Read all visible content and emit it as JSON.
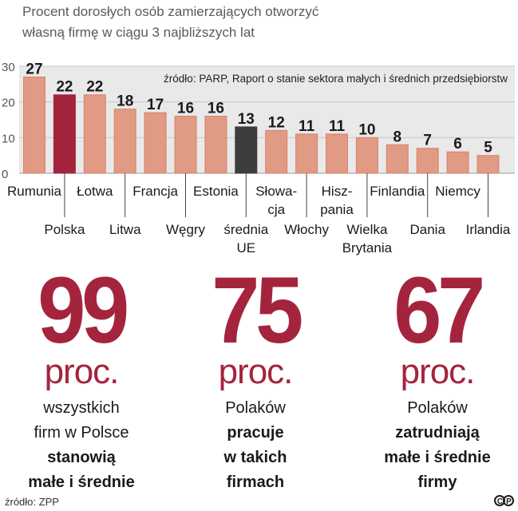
{
  "chart_data": {
    "type": "bar",
    "title": "Procent dorosłych osób zamierzających otworzyć własną firmę w ciągu 3 najbliższych lat",
    "title_lines": [
      "Procent dorosłych osób zamierzających otworzyć",
      "własną firmę w ciągu 3 najbliższych lat"
    ],
    "source_note": "źródło: PARP, Raport o stanie sektora małych i średnich przedsiębiorstw",
    "categories": [
      "Rumunia",
      "Polska",
      "Łotwa",
      "Litwa",
      "Francja",
      "Węgry",
      "Estonia",
      "średnia UE",
      "Słowacja",
      "Włochy",
      "Hiszpania",
      "Wielka Brytania",
      "Finlandia",
      "Dania",
      "Niemcy",
      "Irlandia"
    ],
    "category_label_lines": [
      [
        "Rumunia"
      ],
      [
        "Polska"
      ],
      [
        "Łotwa"
      ],
      [
        "Litwa"
      ],
      [
        "Francja"
      ],
      [
        "Węgry"
      ],
      [
        "Estonia"
      ],
      [
        "średnia",
        "UE"
      ],
      [
        "Słowa-",
        "cja"
      ],
      [
        "Włochy"
      ],
      [
        "Hisz-",
        "pania"
      ],
      [
        "Wielka",
        "Brytania"
      ],
      [
        "Finlandia"
      ],
      [
        "Dania"
      ],
      [
        "Niemcy"
      ],
      [
        "Irlandia"
      ]
    ],
    "values": [
      27,
      22,
      22,
      18,
      17,
      16,
      16,
      13,
      12,
      11,
      11,
      10,
      8,
      7,
      6,
      5
    ],
    "highlight": {
      "Polska": "#a5243d",
      "średnia UE": "#3d3d3d"
    },
    "yticks": [
      0,
      10,
      20,
      30
    ],
    "ylim": [
      0,
      30
    ],
    "xlabel": "",
    "ylabel": "",
    "colors": {
      "bar": "#e19a83",
      "bar_edge": "#d9826a"
    }
  },
  "stats": [
    {
      "number": "99",
      "unit": "proc.",
      "lines": [
        {
          "text": "wszystkich",
          "bold": false
        },
        {
          "text": "firm w Polsce",
          "bold": false
        },
        {
          "text": "stanowią",
          "bold": true
        },
        {
          "text": "małe i średnie",
          "bold": true
        }
      ]
    },
    {
      "number": "75",
      "unit": "proc.",
      "lines": [
        {
          "text": "Polaków",
          "bold": false
        },
        {
          "text": "pracuje",
          "bold": true
        },
        {
          "text": "w takich",
          "bold": true
        },
        {
          "text": "firmach",
          "bold": true
        }
      ]
    },
    {
      "number": "67",
      "unit": "proc.",
      "lines": [
        {
          "text": "Polaków",
          "bold": false
        },
        {
          "text": "zatrudniają",
          "bold": true
        },
        {
          "text": "małe i średnie",
          "bold": true
        },
        {
          "text": "firmy",
          "bold": true
        }
      ]
    }
  ],
  "footer": {
    "source": "źródło: ZPP",
    "logo": "CP"
  }
}
